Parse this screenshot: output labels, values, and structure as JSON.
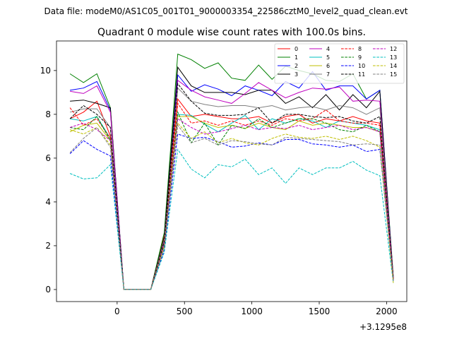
{
  "chart_data": {
    "type": "line",
    "suptitle": "Data file: modeM0/AS1C05_001T01_9000003354_22586cztM0_level2_quad_clean.evt",
    "title": "Quadrant 0 module wise count rates with 100.0s bins.",
    "xlabel": "",
    "ylabel": "",
    "x_offset_label": "+3.1295e8",
    "xlim": [
      -450,
      2150
    ],
    "ylim": [
      -0.55,
      11.35
    ],
    "xticks": [
      0,
      500,
      1000,
      1500,
      2000
    ],
    "yticks": [
      0,
      2,
      4,
      6,
      8,
      10
    ],
    "x": [
      -350,
      -250,
      -150,
      -50,
      50,
      150,
      250,
      350,
      450,
      550,
      650,
      750,
      850,
      950,
      1050,
      1150,
      1250,
      1350,
      1450,
      1550,
      1650,
      1750,
      1850,
      1950,
      2050
    ],
    "series": [
      {
        "name": "0",
        "color": "#ff0000",
        "dash": "solid",
        "values": [
          7.8,
          8.1,
          8.6,
          7.0,
          0.0,
          0.0,
          0.0,
          2.5,
          8.7,
          7.9,
          8.0,
          7.9,
          7.8,
          7.8,
          7.9,
          7.6,
          7.9,
          8.0,
          7.6,
          7.8,
          7.7,
          7.9,
          7.7,
          7.6,
          0.5
        ]
      },
      {
        "name": "1",
        "color": "#008000",
        "dash": "solid",
        "values": [
          9.85,
          9.45,
          9.85,
          8.3,
          0.0,
          0.0,
          0.0,
          2.6,
          10.75,
          10.5,
          10.1,
          10.35,
          9.65,
          9.55,
          10.25,
          9.6,
          10.2,
          10.0,
          9.85,
          9.55,
          9.5,
          9.85,
          8.7,
          9.1,
          0.6
        ]
      },
      {
        "name": "2",
        "color": "#0000ff",
        "dash": "solid",
        "values": [
          9.1,
          9.2,
          9.5,
          8.2,
          0.0,
          0.0,
          0.0,
          2.3,
          9.8,
          9.05,
          9.35,
          9.15,
          8.85,
          9.3,
          9.1,
          8.85,
          9.5,
          9.2,
          9.95,
          9.1,
          9.3,
          9.3,
          8.7,
          9.1,
          0.5
        ]
      },
      {
        "name": "3",
        "color": "#000000",
        "dash": "solid",
        "values": [
          8.6,
          8.65,
          8.5,
          8.3,
          0.0,
          0.0,
          0.0,
          2.4,
          10.15,
          9.3,
          9.0,
          9.0,
          9.0,
          8.9,
          9.1,
          9.1,
          8.5,
          8.8,
          8.3,
          8.9,
          8.2,
          8.9,
          8.3,
          9.05,
          0.5
        ]
      },
      {
        "name": "4",
        "color": "#bf00bf",
        "dash": "solid",
        "values": [
          9.05,
          8.95,
          9.3,
          8.1,
          0.0,
          0.0,
          0.0,
          2.2,
          9.55,
          9.1,
          8.8,
          8.65,
          8.5,
          8.95,
          9.45,
          9.1,
          8.75,
          9.0,
          9.2,
          9.15,
          9.25,
          8.6,
          8.65,
          8.6,
          0.5
        ]
      },
      {
        "name": "5",
        "color": "#00bfbf",
        "dash": "solid",
        "values": [
          7.8,
          7.7,
          7.9,
          6.9,
          0.0,
          0.0,
          0.0,
          2.1,
          8.0,
          7.95,
          7.55,
          7.2,
          7.6,
          7.95,
          7.3,
          7.8,
          7.6,
          7.8,
          7.7,
          7.4,
          7.7,
          7.6,
          7.5,
          7.3,
          0.4
        ]
      },
      {
        "name": "6",
        "color": "#bfbf00",
        "dash": "solid",
        "values": [
          7.2,
          7.5,
          7.6,
          6.8,
          0.0,
          0.0,
          0.0,
          2.0,
          7.9,
          7.9,
          7.6,
          7.4,
          7.5,
          7.35,
          7.6,
          7.4,
          7.3,
          7.7,
          7.5,
          7.6,
          7.5,
          7.4,
          7.4,
          7.2,
          0.4
        ]
      },
      {
        "name": "7",
        "color": "#808080",
        "dash": "solid",
        "values": [
          8.1,
          8.25,
          8.25,
          7.4,
          0.0,
          0.0,
          0.0,
          2.3,
          9.2,
          8.6,
          8.45,
          8.35,
          8.4,
          8.4,
          8.3,
          8.4,
          8.2,
          8.3,
          8.35,
          8.2,
          8.4,
          8.3,
          8.0,
          8.3,
          0.5
        ]
      },
      {
        "name": "8",
        "color": "#ff0000",
        "dash": "dashed",
        "values": [
          8.3,
          7.5,
          7.8,
          6.9,
          0.0,
          0.0,
          0.0,
          2.2,
          8.5,
          7.6,
          7.7,
          7.5,
          7.7,
          7.5,
          7.7,
          7.5,
          7.8,
          7.7,
          7.8,
          8.2,
          7.7,
          7.6,
          7.6,
          7.5,
          0.5
        ]
      },
      {
        "name": "9",
        "color": "#008000",
        "dash": "dashed",
        "values": [
          7.4,
          7.3,
          7.9,
          6.8,
          0.0,
          0.0,
          0.0,
          2.0,
          8.1,
          6.7,
          7.6,
          6.6,
          7.5,
          7.35,
          7.8,
          7.4,
          7.6,
          7.8,
          7.8,
          7.6,
          7.3,
          7.2,
          7.5,
          7.2,
          0.4
        ]
      },
      {
        "name": "10",
        "color": "#0000ff",
        "dash": "dashed",
        "values": [
          6.2,
          6.8,
          6.4,
          6.1,
          0.0,
          0.0,
          0.0,
          1.8,
          7.1,
          6.9,
          6.95,
          6.75,
          6.5,
          6.55,
          6.7,
          6.6,
          6.85,
          6.85,
          6.65,
          6.6,
          6.5,
          6.6,
          6.3,
          6.4,
          0.4
        ]
      },
      {
        "name": "11",
        "color": "#000000",
        "dash": "dashed",
        "values": [
          7.8,
          8.4,
          8.0,
          7.4,
          0.0,
          0.0,
          0.0,
          2.2,
          9.4,
          8.6,
          8.05,
          7.95,
          7.95,
          8.0,
          8.3,
          7.6,
          8.0,
          8.0,
          7.9,
          7.85,
          7.9,
          7.7,
          7.6,
          7.9,
          0.5
        ]
      },
      {
        "name": "12",
        "color": "#bf00bf",
        "dash": "dashed",
        "values": [
          7.4,
          7.6,
          7.3,
          6.8,
          0.0,
          0.0,
          0.0,
          2.1,
          7.8,
          7.4,
          7.1,
          7.2,
          7.35,
          7.5,
          7.3,
          7.4,
          7.35,
          7.5,
          7.3,
          7.4,
          7.5,
          7.3,
          7.4,
          7.2,
          0.4
        ]
      },
      {
        "name": "13",
        "color": "#00bfbf",
        "dash": "dashed",
        "values": [
          5.3,
          5.05,
          5.1,
          5.7,
          0.0,
          0.0,
          0.0,
          1.7,
          6.4,
          5.5,
          5.1,
          5.7,
          5.6,
          5.95,
          5.25,
          5.55,
          4.85,
          5.55,
          5.25,
          5.55,
          5.55,
          5.85,
          5.45,
          5.2,
          0.3
        ]
      },
      {
        "name": "14",
        "color": "#bfbf00",
        "dash": "dashed",
        "values": [
          7.3,
          7.1,
          7.4,
          6.6,
          0.0,
          0.0,
          0.0,
          2.0,
          7.6,
          6.9,
          7.2,
          6.7,
          6.9,
          6.7,
          6.6,
          6.9,
          7.1,
          6.95,
          6.9,
          7.0,
          6.85,
          7.0,
          6.8,
          6.5,
          0.3
        ]
      },
      {
        "name": "15",
        "color": "#808080",
        "dash": "dashed",
        "values": [
          6.25,
          6.9,
          7.4,
          6.5,
          0.0,
          0.0,
          0.0,
          1.9,
          7.5,
          6.7,
          6.9,
          6.6,
          6.8,
          6.75,
          6.65,
          6.6,
          6.95,
          6.9,
          6.85,
          6.8,
          6.75,
          6.6,
          6.65,
          6.6,
          0.4
        ]
      }
    ]
  }
}
